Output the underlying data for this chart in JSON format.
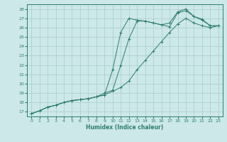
{
  "xlabel": "Humidex (Indice chaleur)",
  "ylabel": "",
  "xlim": [
    -0.5,
    23.5
  ],
  "ylim": [
    16.5,
    28.5
  ],
  "xticks": [
    0,
    1,
    2,
    3,
    4,
    5,
    6,
    7,
    8,
    9,
    10,
    11,
    12,
    13,
    14,
    15,
    16,
    17,
    18,
    19,
    20,
    21,
    22,
    23
  ],
  "yticks": [
    17,
    18,
    19,
    20,
    21,
    22,
    23,
    24,
    25,
    26,
    27,
    28
  ],
  "bg_color": "#cce8e8",
  "grid_color": "#aacccc",
  "line_color": "#2e7d6e",
  "line1_x": [
    0,
    1,
    2,
    3,
    4,
    5,
    6,
    7,
    8,
    9,
    10,
    11,
    12,
    13,
    14,
    15,
    16,
    17,
    18,
    19,
    20,
    21,
    22,
    23
  ],
  "line1_y": [
    16.8,
    17.1,
    17.5,
    17.7,
    18.0,
    18.2,
    18.3,
    18.4,
    18.6,
    19.0,
    19.3,
    22.0,
    24.8,
    26.7,
    26.7,
    26.5,
    26.3,
    26.1,
    27.6,
    27.8,
    27.2,
    26.8,
    26.2,
    26.2
  ],
  "line2_x": [
    0,
    1,
    2,
    3,
    4,
    5,
    6,
    7,
    8,
    9,
    10,
    11,
    12,
    13,
    14,
    15,
    16,
    17,
    18,
    19,
    20,
    21,
    22,
    23
  ],
  "line2_y": [
    16.8,
    17.1,
    17.5,
    17.7,
    18.0,
    18.2,
    18.3,
    18.4,
    18.6,
    18.8,
    21.5,
    25.5,
    27.0,
    26.8,
    26.7,
    26.5,
    26.3,
    26.5,
    27.7,
    28.0,
    27.2,
    26.9,
    26.2,
    26.2
  ],
  "line3_x": [
    0,
    1,
    2,
    3,
    4,
    5,
    6,
    7,
    8,
    9,
    10,
    11,
    12,
    13,
    14,
    15,
    16,
    17,
    18,
    19,
    20,
    21,
    22,
    23
  ],
  "line3_y": [
    16.8,
    17.1,
    17.5,
    17.7,
    18.0,
    18.2,
    18.3,
    18.4,
    18.6,
    18.8,
    19.2,
    19.6,
    20.3,
    21.5,
    22.5,
    23.5,
    24.5,
    25.5,
    26.4,
    27.0,
    26.5,
    26.2,
    26.0,
    26.2
  ]
}
